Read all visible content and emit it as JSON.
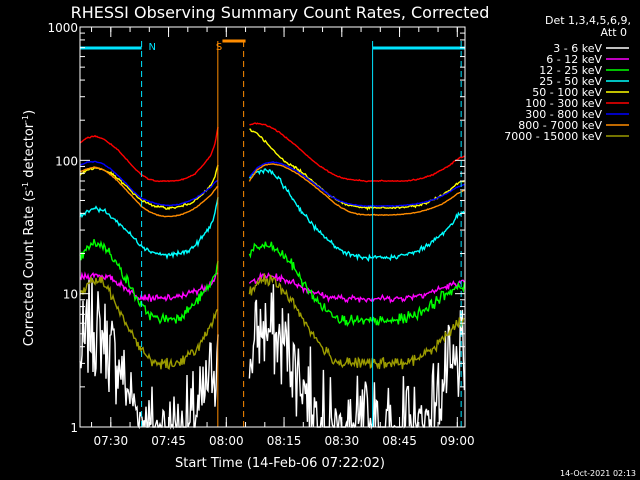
{
  "chart_data": {
    "type": "line",
    "title": "RHESSI Observing Summary Count Rates, Corrected",
    "xlabel": "Start Time (14-Feb-06 07:22:02)",
    "ylabel_main": "Corrected Count Rate (s",
    "ylabel_sup1": "-1",
    "ylabel_mid": " detector",
    "ylabel_sup2": "-1",
    "ylabel_end": ")",
    "yscale": "log",
    "ylim": [
      1,
      1000
    ],
    "xlim_minutes": [
      0,
      100
    ],
    "x_tick_minutes": [
      8,
      23,
      38,
      53,
      68,
      83,
      98
    ],
    "x_tick_labels": [
      "07:30",
      "07:45",
      "08:00",
      "08:15",
      "08:30",
      "08:45",
      "09:00"
    ],
    "y_tick_values": [
      1,
      10,
      100,
      1000
    ],
    "y_tick_labels": [
      "1",
      "10",
      "100",
      "1000"
    ],
    "legend_header": [
      "Det 1,3,4,5,6,9,",
      "Att 0"
    ],
    "legend_position": "right",
    "footer_timestamp": "14-Oct-2021 02:13",
    "night_bars": [
      {
        "start": 0,
        "end": 16,
        "color": "#00e5ff"
      },
      {
        "start": 76,
        "end": 100,
        "color": "#00e5ff"
      }
    ],
    "saa_bars": [
      {
        "start": 37,
        "end": 43,
        "color": "#ff8c00"
      }
    ],
    "markers": [
      {
        "text": "N",
        "at": 17,
        "color": "#00e5ff"
      },
      {
        "text": "S",
        "at": 34.5,
        "color": "#ff8c00"
      }
    ],
    "vlines": [
      {
        "at": 16,
        "color": "#00e5ff",
        "dash": true
      },
      {
        "at": 35.8,
        "color": "#ff8c00",
        "dash": false
      },
      {
        "at": 42.5,
        "color": "#ff8c00",
        "dash": true
      },
      {
        "at": 76,
        "color": "#00e5ff",
        "dash": false
      },
      {
        "at": 99,
        "color": "#00e5ff",
        "dash": true
      }
    ],
    "gap_minutes": [
      36.2,
      44
    ],
    "segments": [
      {
        "x": [
          0,
          2,
          4,
          6,
          8,
          10,
          12,
          14,
          16,
          18,
          20,
          22,
          24,
          26,
          28,
          30,
          32,
          34,
          35,
          36
        ]
      },
      {
        "x": [
          44,
          46,
          48,
          50,
          52,
          54,
          56,
          58,
          60,
          62,
          64,
          66,
          68,
          70,
          72,
          74,
          76,
          78,
          80,
          82,
          84,
          86,
          88,
          90,
          92,
          94,
          96,
          98,
          100
        ]
      }
    ],
    "series": [
      {
        "name": "3 - 6 keV",
        "color": "#ffffff",
        "noise": 0.45,
        "seg_values": [
          [
            3,
            5,
            5.5,
            5,
            4,
            3,
            2,
            1.5,
            1.2,
            1,
            1,
            1,
            1,
            1,
            1,
            1.2,
            1.5,
            2.5,
            3,
            3.5
          ],
          [
            3,
            5,
            5.5,
            5,
            4.5,
            4,
            3,
            2.2,
            1.6,
            1.3,
            1,
            1,
            1,
            1,
            1,
            1,
            1,
            1,
            1,
            1,
            1,
            1,
            1,
            1.2,
            1.5,
            2,
            2.5,
            3,
            3
          ]
        ]
      },
      {
        "name": "6 - 12 keV",
        "color": "#ff00ff",
        "noise": 0.12,
        "seg_values": [
          [
            13,
            13.5,
            14,
            13.5,
            13,
            12,
            11,
            10,
            9.5,
            9.3,
            9.2,
            9.2,
            9.3,
            9.5,
            10,
            10.5,
            11,
            12,
            13,
            14
          ],
          [
            12,
            13,
            13.5,
            13.5,
            13,
            12.5,
            12,
            11,
            10.5,
            10,
            9.5,
            9.3,
            9.2,
            9.2,
            9.2,
            9.2,
            9.2,
            9.2,
            9.2,
            9.2,
            9.3,
            9.5,
            9.8,
            10,
            10.5,
            11,
            11.5,
            12,
            12
          ]
        ]
      },
      {
        "name": "12 - 25 keV",
        "color": "#00ff00",
        "noise": 0.15,
        "seg_values": [
          [
            18,
            22,
            24,
            23,
            20,
            16,
            13,
            10,
            8,
            7,
            6.5,
            6.5,
            6.5,
            6.8,
            7.5,
            8.5,
            10,
            12,
            14,
            18
          ],
          [
            20,
            22,
            23,
            22,
            20,
            18,
            15,
            12,
            10,
            8.5,
            7.5,
            7,
            6.5,
            6.3,
            6.2,
            6.2,
            6.2,
            6.2,
            6.2,
            6.3,
            6.5,
            6.8,
            7.2,
            7.8,
            8.5,
            9.5,
            10.5,
            11,
            11
          ]
        ]
      },
      {
        "name": "25 - 50 keV",
        "color": "#00ffff",
        "noise": 0.1,
        "seg_values": [
          [
            38,
            42,
            44,
            42,
            38,
            34,
            30,
            26,
            23,
            21,
            20,
            19.5,
            19.5,
            20,
            21,
            23,
            27,
            33,
            38,
            55
          ],
          [
            75,
            82,
            85,
            80,
            70,
            58,
            48,
            40,
            34,
            29,
            26,
            23,
            21,
            20,
            19,
            18.5,
            18.5,
            18.5,
            18.5,
            19,
            19.5,
            20,
            21,
            23,
            25,
            28,
            32,
            38,
            42
          ]
        ]
      },
      {
        "name": "50 - 100 keV",
        "color": "#ffff00",
        "noise": 0.07,
        "seg_values": [
          [
            78,
            85,
            88,
            85,
            80,
            72,
            64,
            56,
            50,
            47,
            45,
            44,
            44,
            45,
            47,
            50,
            56,
            65,
            75,
            95
          ],
          [
            170,
            160,
            140,
            120,
            105,
            95,
            88,
            80,
            72,
            64,
            57,
            52,
            48,
            46,
            45,
            44,
            44,
            44,
            44,
            44,
            44.5,
            45,
            46,
            48,
            51,
            55,
            60,
            67,
            72
          ]
        ]
      },
      {
        "name": "100 - 300 keV",
        "color": "#ff0000",
        "noise": 0.05,
        "seg_values": [
          [
            135,
            148,
            152,
            145,
            132,
            118,
            102,
            88,
            78,
            72,
            70,
            70,
            70,
            71,
            74,
            80,
            92,
            110,
            130,
            190
          ],
          [
            185,
            190,
            185,
            175,
            160,
            145,
            130,
            115,
            102,
            92,
            84,
            78,
            74,
            72,
            71,
            70,
            70,
            70,
            70,
            70,
            70,
            71,
            72,
            75,
            79,
            85,
            92,
            102,
            108
          ]
        ]
      },
      {
        "name": "300 - 800 keV",
        "color": "#0000ff",
        "noise": 0.04,
        "seg_values": [
          [
            92,
            97,
            98,
            94,
            86,
            76,
            67,
            58,
            52,
            49,
            47,
            46,
            46,
            47,
            49,
            52,
            57,
            63,
            68,
            72
          ],
          [
            75,
            88,
            95,
            97,
            95,
            90,
            84,
            77,
            70,
            63,
            57,
            52,
            49,
            47,
            46,
            45.5,
            45.5,
            45.5,
            45.5,
            45.5,
            46,
            46.5,
            47.5,
            49,
            51,
            54,
            58,
            63,
            66
          ]
        ]
      },
      {
        "name": "800 - 7000 keV",
        "color": "#ff8c00",
        "noise": 0.04,
        "seg_values": [
          [
            82,
            87,
            89,
            85,
            78,
            69,
            60,
            52,
            45,
            41,
            39,
            38,
            38,
            39,
            41,
            44,
            49,
            55,
            60,
            65
          ],
          [
            70,
            85,
            92,
            94,
            92,
            87,
            81,
            74,
            67,
            60,
            54,
            48,
            44,
            41,
            39.5,
            39,
            39,
            39,
            39,
            39,
            39.5,
            40,
            41,
            42.5,
            44.5,
            47,
            51,
            56,
            60
          ]
        ]
      },
      {
        "name": "7000 - 15000 keV",
        "color": "#9b9b00",
        "noise": 0.15,
        "seg_values": [
          [
            10,
            12,
            12.5,
            12,
            10,
            8,
            6,
            4.8,
            3.8,
            3.2,
            3,
            3,
            3,
            3.1,
            3.4,
            3.8,
            4.5,
            5.5,
            6.5,
            8
          ],
          [
            10,
            12,
            13,
            12.5,
            11,
            9.5,
            8,
            6.5,
            5.2,
            4.3,
            3.6,
            3.2,
            3,
            3,
            3,
            3,
            3,
            3,
            3,
            3,
            3,
            3.1,
            3.3,
            3.6,
            4,
            4.5,
            5.2,
            6,
            6.5
          ]
        ]
      }
    ]
  }
}
